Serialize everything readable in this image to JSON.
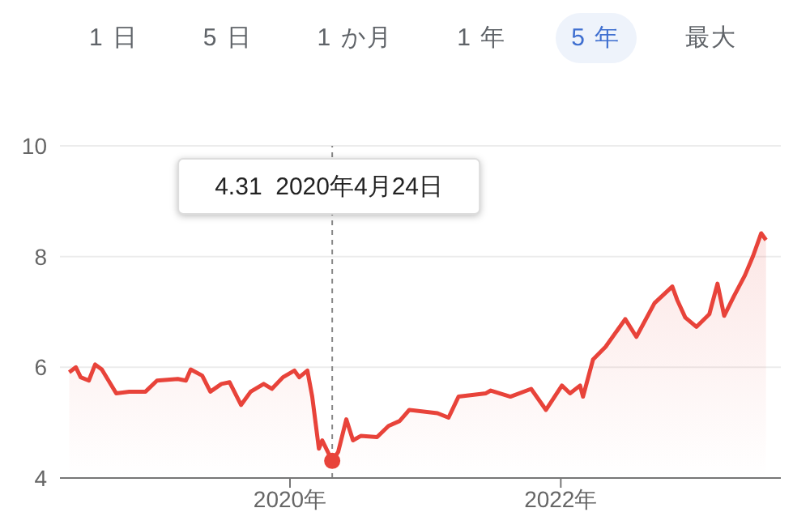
{
  "chart_data": {
    "type": "area",
    "x": [
      "2018-05-15",
      "2018-06-02",
      "2018-06-15",
      "2018-07-07",
      "2018-07-24",
      "2018-08-11",
      "2018-09-19",
      "2018-10-24",
      "2018-12-07",
      "2019-01-07",
      "2019-03-04",
      "2019-03-26",
      "2019-04-08",
      "2019-05-09",
      "2019-05-31",
      "2019-06-30",
      "2019-07-22",
      "2019-08-22",
      "2019-09-17",
      "2019-10-22",
      "2019-11-13",
      "2019-12-13",
      "2020-01-13",
      "2020-01-26",
      "2020-02-17",
      "2020-03-01",
      "2020-03-19",
      "2020-03-28",
      "2020-04-24",
      "2020-05-10",
      "2020-06-01",
      "2020-06-19",
      "2020-07-10",
      "2020-08-23",
      "2020-09-23",
      "2020-10-23",
      "2020-11-18",
      "2021-02-02",
      "2021-03-04",
      "2021-03-31",
      "2021-06-13",
      "2021-06-26",
      "2021-08-18",
      "2021-10-13",
      "2021-11-22",
      "2022-01-04",
      "2022-01-26",
      "2022-02-22",
      "2022-03-02",
      "2022-03-29",
      "2022-05-02",
      "2022-06-06",
      "2022-06-24",
      "2022-07-24",
      "2022-09-11",
      "2022-10-29",
      "2022-11-11",
      "2022-12-03",
      "2023-01-02",
      "2023-02-06",
      "2023-02-28",
      "2023-03-18",
      "2023-04-13",
      "2023-05-13",
      "2023-06-04",
      "2023-06-26",
      "2023-07-09"
    ],
    "series": [
      {
        "color": "#e8433a",
        "values": [
          5.91,
          6.0,
          5.82,
          5.76,
          6.05,
          5.96,
          5.53,
          5.56,
          5.56,
          5.76,
          5.79,
          5.76,
          5.96,
          5.85,
          5.56,
          5.7,
          5.73,
          5.32,
          5.56,
          5.7,
          5.61,
          5.82,
          5.94,
          5.82,
          5.94,
          5.47,
          4.53,
          4.68,
          4.31,
          4.47,
          5.06,
          4.68,
          4.76,
          4.74,
          4.94,
          5.03,
          5.23,
          5.17,
          5.09,
          5.47,
          5.53,
          5.58,
          5.47,
          5.61,
          5.23,
          5.67,
          5.53,
          5.67,
          5.47,
          6.14,
          6.37,
          6.7,
          6.87,
          6.55,
          7.16,
          7.46,
          7.22,
          6.9,
          6.73,
          6.96,
          7.51,
          6.93,
          7.28,
          7.66,
          8.01,
          8.42,
          8.3
        ]
      }
    ],
    "xlim": [
      "2018-04-20",
      "2023-08-18"
    ],
    "xticks": [
      {
        "value": "2020-01-01",
        "label": "2020年"
      },
      {
        "value": "2022-01-01",
        "label": "2022年"
      }
    ],
    "ylim": [
      4,
      10
    ],
    "yticks": [
      4,
      6,
      8,
      10
    ],
    "grid": "y",
    "ref_lines": [
      {
        "axis": "x",
        "value": "2020-04-24",
        "label": "4.31  2020年4月24日",
        "color": "#888888",
        "line_style": "dashed"
      }
    ],
    "annotations": [
      "1 日",
      "5 日",
      "1 か月",
      "1 年",
      "5 年",
      "最大"
    ]
  }
}
